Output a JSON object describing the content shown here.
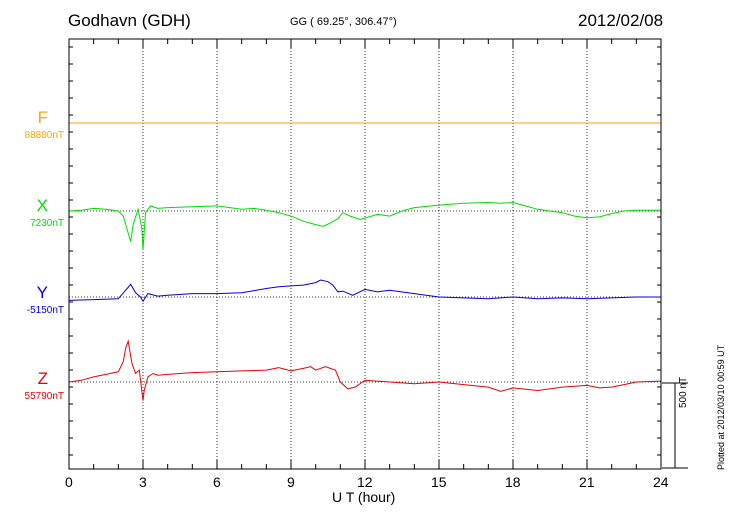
{
  "header": {
    "station": "Godhavn (GDH)",
    "coords": "GG ( 69.25°, 306.47°)",
    "date": "2012/02/08"
  },
  "footer": {
    "plotted": "Plotted at 2012/03/10 00:59 UT"
  },
  "chart_data": {
    "type": "line",
    "xlabel": "U T (hour)",
    "xlim": [
      0,
      24
    ],
    "xticks": [
      "0",
      "3",
      "6",
      "9",
      "12",
      "15",
      "18",
      "21",
      "24"
    ],
    "scale_bar": "500 nT",
    "grid": true,
    "series": [
      {
        "name": "F",
        "value_label": "88880nT",
        "color": "#ffa500",
        "baseline": 88880,
        "x": [
          0,
          24
        ],
        "y": [
          88880,
          88880
        ]
      },
      {
        "name": "X",
        "value_label": "7230nT",
        "color": "#00dd00",
        "baseline": 7230,
        "x": [
          0,
          0.5,
          1,
          1.5,
          2,
          2.2,
          2.4,
          2.5,
          2.6,
          2.8,
          2.95,
          3.0,
          3.1,
          3.3,
          3.6,
          4,
          5,
          6,
          7,
          7.5,
          8,
          8.5,
          9,
          9.5,
          10,
          10.3,
          10.6,
          10.9,
          11.1,
          11.4,
          11.8,
          12.5,
          13,
          13.5,
          14,
          15,
          16,
          17,
          17.5,
          18,
          18.5,
          19,
          20,
          20.5,
          21,
          21.5,
          22,
          22.5,
          23,
          24
        ],
        "y": [
          7230,
          7235,
          7245,
          7240,
          7230,
          7200,
          7100,
          7050,
          7150,
          7240,
          7130,
          7000,
          7220,
          7260,
          7245,
          7250,
          7255,
          7260,
          7240,
          7245,
          7235,
          7220,
          7200,
          7170,
          7150,
          7140,
          7160,
          7185,
          7220,
          7200,
          7180,
          7210,
          7200,
          7230,
          7250,
          7265,
          7275,
          7280,
          7275,
          7280,
          7260,
          7240,
          7220,
          7200,
          7190,
          7195,
          7215,
          7230,
          7235,
          7235
        ]
      },
      {
        "name": "Y",
        "value_label": "-5150nT",
        "color": "#0000dd",
        "baseline": -5150,
        "x": [
          0,
          1,
          2,
          2.3,
          2.5,
          2.7,
          2.9,
          3.0,
          3.2,
          3.6,
          4,
          5,
          6,
          7,
          8,
          8.5,
          9,
          9.5,
          10,
          10.2,
          10.5,
          10.7,
          10.9,
          11.1,
          11.5,
          12,
          12.5,
          13,
          14,
          15,
          16,
          17,
          18,
          19,
          20,
          21,
          22,
          23,
          24
        ],
        "y": [
          -5170,
          -5165,
          -5160,
          -5110,
          -5075,
          -5125,
          -5150,
          -5175,
          -5130,
          -5145,
          -5140,
          -5130,
          -5130,
          -5125,
          -5100,
          -5090,
          -5085,
          -5080,
          -5065,
          -5050,
          -5060,
          -5080,
          -5120,
          -5115,
          -5140,
          -5105,
          -5120,
          -5110,
          -5130,
          -5150,
          -5155,
          -5160,
          -5150,
          -5160,
          -5155,
          -5160,
          -5155,
          -5150,
          -5150
        ]
      },
      {
        "name": "Z",
        "value_label": "55790nT",
        "color": "#ee0000",
        "baseline": 55790,
        "x": [
          0,
          0.5,
          1,
          1.5,
          2,
          2.2,
          2.3,
          2.4,
          2.55,
          2.7,
          2.85,
          3.0,
          3.05,
          3.2,
          3.4,
          3.6,
          4,
          5,
          6,
          7,
          8,
          8.5,
          9,
          9.5,
          9.8,
          10,
          10.4,
          10.8,
          11,
          11.3,
          11.6,
          12,
          13,
          14,
          15,
          16,
          17,
          17.5,
          18,
          19,
          20,
          21,
          21.5,
          22,
          22.5,
          23,
          24
        ],
        "y": [
          55790,
          55800,
          55820,
          55835,
          55850,
          55910,
          55990,
          56030,
          55900,
          55840,
          55860,
          55680,
          55740,
          55820,
          55840,
          55830,
          55835,
          55845,
          55850,
          55855,
          55860,
          55875,
          55855,
          55870,
          55880,
          55860,
          55880,
          55860,
          55790,
          55750,
          55760,
          55800,
          55790,
          55780,
          55790,
          55775,
          55760,
          55735,
          55755,
          55740,
          55760,
          55770,
          55755,
          55760,
          55775,
          55790,
          55795
        ]
      }
    ]
  }
}
